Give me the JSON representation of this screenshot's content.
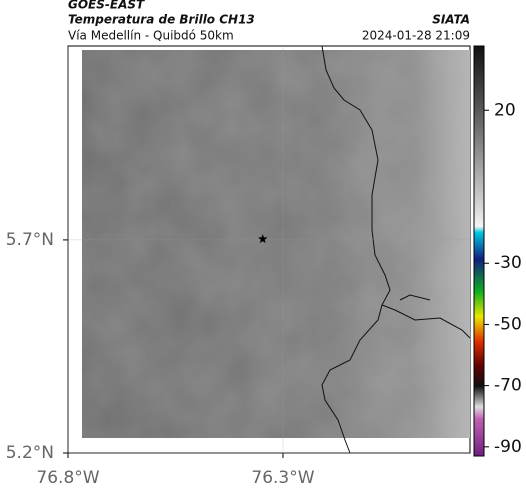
{
  "header": {
    "product": "GOES-EAST",
    "title": "Temperatura de Brillo CH13",
    "subtitle": "Vía Medellín - Quibdó 50km",
    "source": "SIATA",
    "datetime": "2024-01-28 21:09"
  },
  "map": {
    "lonlim": [
      -76.8,
      -75.865
    ],
    "latlim": [
      5.2,
      6.155
    ],
    "xticks": [
      {
        "value": -76.8,
        "label": "76.8°W"
      },
      {
        "value": -76.3,
        "label": "76.3°W"
      }
    ],
    "yticks": [
      {
        "value": 5.2,
        "label": "5.2°N"
      },
      {
        "value": 5.7,
        "label": "5.7°N"
      }
    ],
    "grid": true,
    "marker": {
      "lon": -76.347,
      "lat": 5.702
    }
  },
  "colorbar": {
    "clim": [
      -93,
      41
    ],
    "ticks": [
      20,
      -30,
      -50,
      -70,
      -90
    ]
  }
}
